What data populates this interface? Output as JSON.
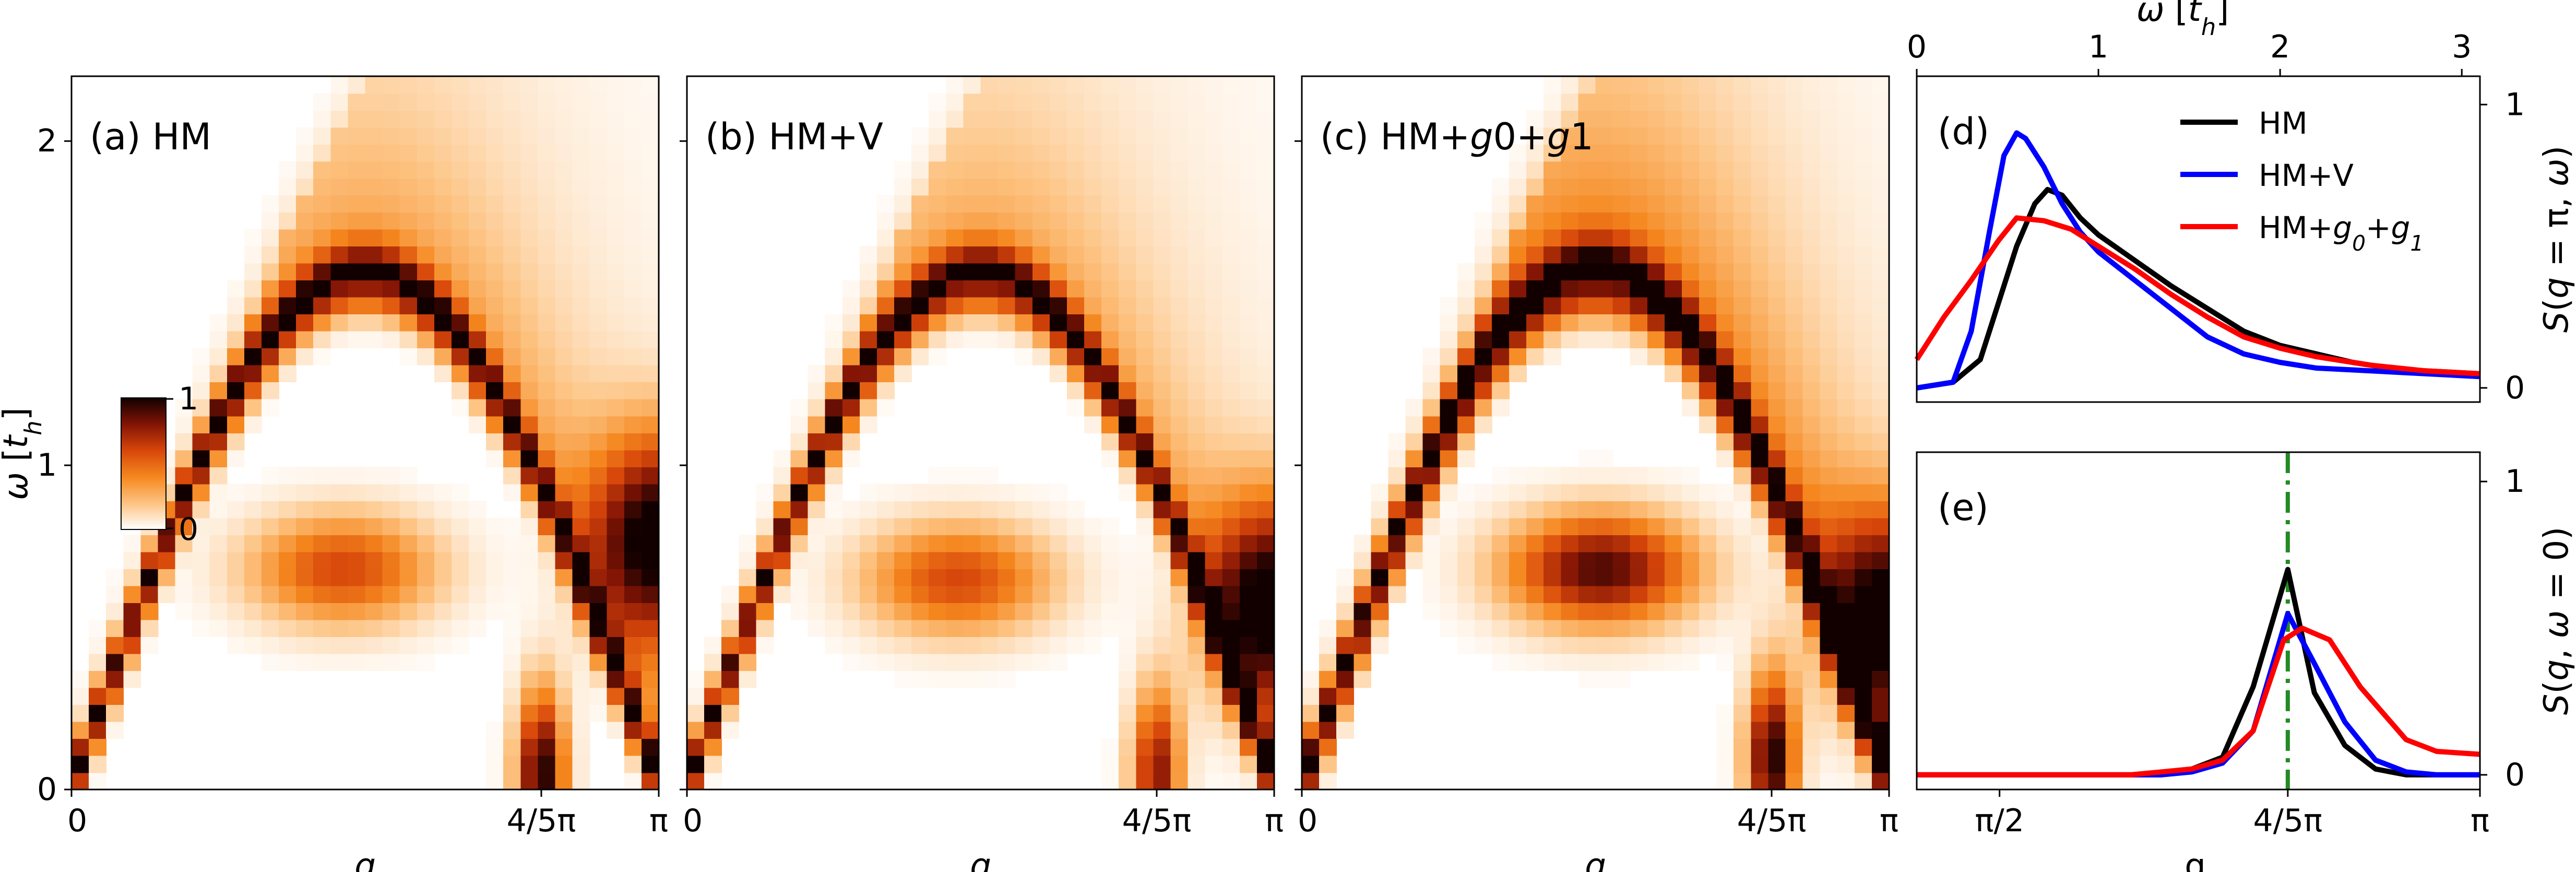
{
  "chart_data": [
    {
      "type": "heatmap",
      "panel_label": "(a) HM",
      "xlabel": "q",
      "ylabel": "ω [t_h]",
      "xlim": [
        0,
        3.14159
      ],
      "ylim": [
        0,
        2.2
      ],
      "x_ticks": [
        {
          "value": 0,
          "label": "0"
        },
        {
          "value": 2.51327,
          "label": "4/5π"
        },
        {
          "value": 3.14159,
          "label": "π"
        }
      ],
      "y_ticks": [
        {
          "value": 0,
          "label": "0"
        },
        {
          "value": 1,
          "label": "1"
        },
        {
          "value": 2,
          "label": "2"
        }
      ],
      "colorbar": {
        "min": 0,
        "max": 1,
        "labels": [
          "0",
          "1"
        ]
      },
      "features": {
        "spinon_peak_amplitude": 0.8,
        "spinon_peak_width": 0.07,
        "continuum_amplitude": 0.3,
        "continuum_falloff": 2.4,
        "hotspot_zone_boundary": {
          "q": 3.14159,
          "omega": 0.78,
          "amplitude": 1.0
        },
        "hotspot_mid": {
          "q": 1.45,
          "omega": 0.68,
          "amplitude": 0.6
        },
        "hotspot_soft_mode": {
          "q": 2.51327,
          "omega": 0.05,
          "amplitude": 1.0
        }
      }
    },
    {
      "type": "heatmap",
      "panel_label": "(b) HM+V",
      "xlabel": "q",
      "xlim": [
        0,
        3.14159
      ],
      "ylim": [
        0,
        2.2
      ],
      "x_ticks": [
        {
          "value": 0,
          "label": "0"
        },
        {
          "value": 2.51327,
          "label": "4/5π"
        },
        {
          "value": 3.14159,
          "label": "π"
        }
      ],
      "features": {
        "spinon_peak_amplitude": 0.8,
        "spinon_peak_width": 0.07,
        "continuum_amplitude": 0.28,
        "continuum_falloff": 2.6,
        "hotspot_zone_boundary": {
          "q": 3.14159,
          "omega": 0.58,
          "amplitude": 1.0
        },
        "hotspot_mid": {
          "q": 1.45,
          "omega": 0.65,
          "amplitude": 0.6
        },
        "hotspot_soft_mode": {
          "q": 2.51327,
          "omega": 0.05,
          "amplitude": 0.8
        }
      }
    },
    {
      "type": "heatmap",
      "panel_label": "(c) HM+g0+g1",
      "xlabel": "q",
      "xlim": [
        0,
        3.14159
      ],
      "ylim": [
        0,
        2.2
      ],
      "x_ticks": [
        {
          "value": 0,
          "label": "0"
        },
        {
          "value": 2.51327,
          "label": "4/5π"
        },
        {
          "value": 3.14159,
          "label": "π"
        }
      ],
      "features": {
        "spinon_peak_amplitude": 0.85,
        "spinon_peak_width": 0.08,
        "continuum_amplitude": 0.42,
        "continuum_falloff": 1.9,
        "hotspot_zone_boundary": {
          "q": 3.14159,
          "omega": 0.55,
          "amplitude": 0.9
        },
        "hotspot_mid": {
          "q": 1.6,
          "omega": 0.68,
          "amplitude": 0.9
        },
        "hotspot_soft_mode": {
          "q": 2.51327,
          "omega": 0.1,
          "amplitude": 1.0
        }
      }
    },
    {
      "type": "line",
      "panel_label": "(d)",
      "xlabel": "ω [t_h]",
      "ylabel": "S(q = π, ω)",
      "xlim": [
        0,
        3.1
      ],
      "ylim": [
        -0.05,
        1.1
      ],
      "x_ticks": [
        0,
        1,
        2,
        3
      ],
      "y_ticks": [
        0,
        1
      ],
      "legend_position": "upper-right",
      "series": [
        {
          "name": "HM",
          "color": "#000000",
          "x": [
            0,
            0.2,
            0.35,
            0.45,
            0.55,
            0.65,
            0.72,
            0.8,
            0.9,
            1.0,
            1.2,
            1.4,
            1.6,
            1.8,
            2.0,
            2.2,
            2.4,
            2.6,
            2.8,
            3.1
          ],
          "y": [
            0.0,
            0.02,
            0.1,
            0.3,
            0.5,
            0.65,
            0.7,
            0.68,
            0.6,
            0.54,
            0.45,
            0.36,
            0.28,
            0.2,
            0.15,
            0.12,
            0.09,
            0.07,
            0.06,
            0.05
          ]
        },
        {
          "name": "HM+V",
          "color": "#0000ff",
          "x": [
            0,
            0.2,
            0.3,
            0.4,
            0.48,
            0.55,
            0.6,
            0.7,
            0.8,
            0.9,
            1.0,
            1.2,
            1.4,
            1.6,
            1.8,
            2.0,
            2.2,
            2.5,
            2.8,
            3.1
          ],
          "y": [
            0.0,
            0.02,
            0.2,
            0.55,
            0.82,
            0.9,
            0.88,
            0.78,
            0.65,
            0.55,
            0.48,
            0.38,
            0.28,
            0.18,
            0.12,
            0.09,
            0.07,
            0.06,
            0.05,
            0.04
          ]
        },
        {
          "name": "HM+g_0+g_1",
          "color": "#ff0000",
          "x": [
            0,
            0.15,
            0.3,
            0.45,
            0.55,
            0.7,
            0.85,
            1.0,
            1.2,
            1.4,
            1.6,
            1.8,
            2.0,
            2.2,
            2.5,
            2.8,
            3.1
          ],
          "y": [
            0.1,
            0.25,
            0.38,
            0.52,
            0.6,
            0.59,
            0.56,
            0.5,
            0.42,
            0.33,
            0.25,
            0.18,
            0.14,
            0.11,
            0.08,
            0.06,
            0.05
          ]
        }
      ]
    },
    {
      "type": "line",
      "panel_label": "(e)",
      "xlabel": "q",
      "ylabel": "S(q, ω = 0)",
      "xlim": [
        1.3,
        3.14159
      ],
      "ylim": [
        -0.05,
        1.1
      ],
      "x_ticks": [
        {
          "value": 1.5708,
          "label": "π/2"
        },
        {
          "value": 2.51327,
          "label": "4/5π"
        },
        {
          "value": 3.14159,
          "label": "π"
        }
      ],
      "y_ticks": [
        0,
        1
      ],
      "vline": {
        "x": 2.51327,
        "color": "#228b22"
      },
      "series": [
        {
          "name": "HM",
          "color": "#000000",
          "x": [
            1.3,
            1.5,
            1.8,
            2.0,
            2.1,
            2.2,
            2.3,
            2.4,
            2.51327,
            2.6,
            2.7,
            2.8,
            2.9,
            3.0,
            3.14159
          ],
          "y": [
            0.0,
            0.0,
            0.0,
            0.0,
            0.0,
            0.02,
            0.06,
            0.3,
            0.7,
            0.28,
            0.1,
            0.02,
            0.0,
            0.0,
            0.0
          ]
        },
        {
          "name": "HM+V",
          "color": "#0000ff",
          "x": [
            1.3,
            1.5,
            1.8,
            2.0,
            2.1,
            2.2,
            2.3,
            2.4,
            2.51327,
            2.6,
            2.7,
            2.8,
            2.9,
            3.0,
            3.14159
          ],
          "y": [
            0.0,
            0.0,
            0.0,
            0.0,
            0.0,
            0.01,
            0.04,
            0.15,
            0.55,
            0.38,
            0.18,
            0.05,
            0.01,
            0.0,
            0.0
          ]
        },
        {
          "name": "HM+g_0+g_1",
          "color": "#ff0000",
          "x": [
            1.3,
            1.5,
            1.8,
            2.0,
            2.1,
            2.2,
            2.3,
            2.4,
            2.5,
            2.56,
            2.65,
            2.75,
            2.9,
            3.0,
            3.14159
          ],
          "y": [
            0.0,
            0.0,
            0.0,
            0.0,
            0.01,
            0.02,
            0.05,
            0.15,
            0.46,
            0.5,
            0.46,
            0.3,
            0.12,
            0.08,
            0.07
          ]
        }
      ]
    }
  ]
}
